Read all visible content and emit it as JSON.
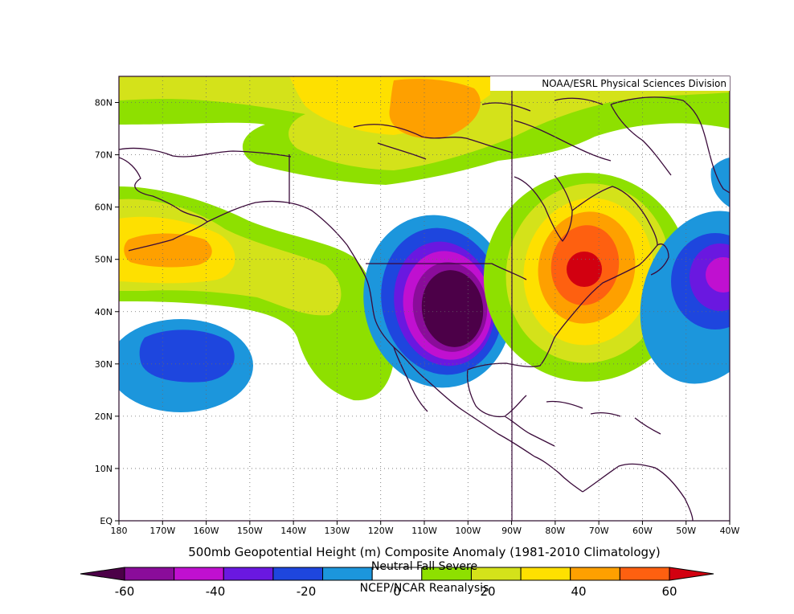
{
  "credit": "NOAA/ESRL Physical Sciences Division",
  "title": "500mb Geopotential Height (m) Composite Anomaly (1981-2010 Climatology)",
  "subtitle": "Neutral Fall Severe",
  "source": "NCEP/NCAR Reanalysis",
  "map": {
    "lat_range": [
      0,
      85
    ],
    "lon_range": [
      -180,
      -40
    ],
    "lat_ticks": [
      {
        "value": 80,
        "label": "80N"
      },
      {
        "value": 70,
        "label": "70N"
      },
      {
        "value": 60,
        "label": "60N"
      },
      {
        "value": 50,
        "label": "50N"
      },
      {
        "value": 40,
        "label": "40N"
      },
      {
        "value": 30,
        "label": "30N"
      },
      {
        "value": 20,
        "label": "20N"
      },
      {
        "value": 10,
        "label": "10N"
      },
      {
        "value": 0,
        "label": "EQ"
      }
    ],
    "lon_ticks": [
      {
        "value": -180,
        "label": "180"
      },
      {
        "value": -170,
        "label": "170W"
      },
      {
        "value": -160,
        "label": "160W"
      },
      {
        "value": -150,
        "label": "150W"
      },
      {
        "value": -140,
        "label": "140W"
      },
      {
        "value": -130,
        "label": "130W"
      },
      {
        "value": -120,
        "label": "120W"
      },
      {
        "value": -110,
        "label": "110W"
      },
      {
        "value": -100,
        "label": "100W"
      },
      {
        "value": -90,
        "label": "90W"
      },
      {
        "value": -80,
        "label": "80W"
      },
      {
        "value": -70,
        "label": "70W"
      },
      {
        "value": -60,
        "label": "60W"
      },
      {
        "value": -50,
        "label": "50W"
      },
      {
        "value": -40,
        "label": "40W"
      }
    ],
    "grid": "dotted",
    "anomaly_centers": [
      {
        "lon": -105,
        "lat": 41,
        "sign": "negative",
        "peak": -60
      },
      {
        "lon": -73,
        "lat": 48,
        "sign": "positive",
        "peak": 60
      },
      {
        "lon": -165,
        "lat": 52,
        "sign": "positive",
        "peak": 40
      },
      {
        "lon": -163,
        "lat": 31,
        "sign": "negative",
        "peak": -30
      },
      {
        "lon": -42,
        "lat": 47,
        "sign": "negative",
        "peak": -50
      },
      {
        "lon": -105,
        "lat": 82,
        "sign": "positive",
        "peak": 40
      }
    ]
  },
  "colorbar": {
    "colors": [
      "#4c0048",
      "#8a0c9a",
      "#c010d0",
      "#6a18e0",
      "#1e46de",
      "#1c96dc",
      "#ffffff",
      "#8ee000",
      "#d4e21a",
      "#fee000",
      "#fea000",
      "#fe6010",
      "#d20010"
    ],
    "tick_labels": [
      {
        "value": -60,
        "label": "-60"
      },
      {
        "value": -40,
        "label": "-40"
      },
      {
        "value": -20,
        "label": "-20"
      },
      {
        "value": 0,
        "label": "0"
      },
      {
        "value": 20,
        "label": "20"
      },
      {
        "value": 40,
        "label": "40"
      },
      {
        "value": 60,
        "label": "60"
      }
    ]
  }
}
